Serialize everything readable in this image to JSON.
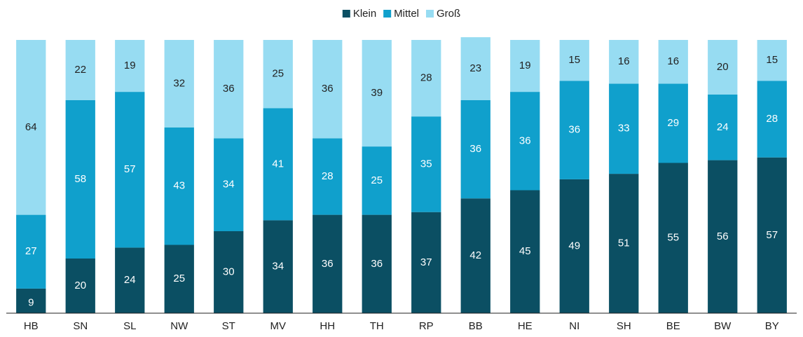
{
  "chart_data": {
    "type": "stacked_bar",
    "categories": [
      "HB",
      "SN",
      "SL",
      "NW",
      "ST",
      "MV",
      "HH",
      "TH",
      "RP",
      "BB",
      "HE",
      "NI",
      "SH",
      "BE",
      "BW",
      "BY"
    ],
    "series": [
      {
        "name": "Klein",
        "color": "#0b4f63",
        "values": [
          9,
          20,
          24,
          25,
          30,
          34,
          36,
          36,
          37,
          42,
          45,
          49,
          51,
          55,
          56,
          57
        ]
      },
      {
        "name": "Mittel",
        "color": "#10a0cc",
        "values": [
          27,
          58,
          57,
          43,
          34,
          41,
          28,
          25,
          35,
          36,
          36,
          36,
          33,
          29,
          24,
          28
        ]
      },
      {
        "name": "Groß",
        "color": "#97dcf2",
        "values": [
          64,
          22,
          19,
          32,
          36,
          25,
          36,
          39,
          28,
          23,
          19,
          15,
          16,
          16,
          20,
          15
        ]
      }
    ],
    "ylim": [
      0,
      100
    ],
    "legend": "top"
  }
}
